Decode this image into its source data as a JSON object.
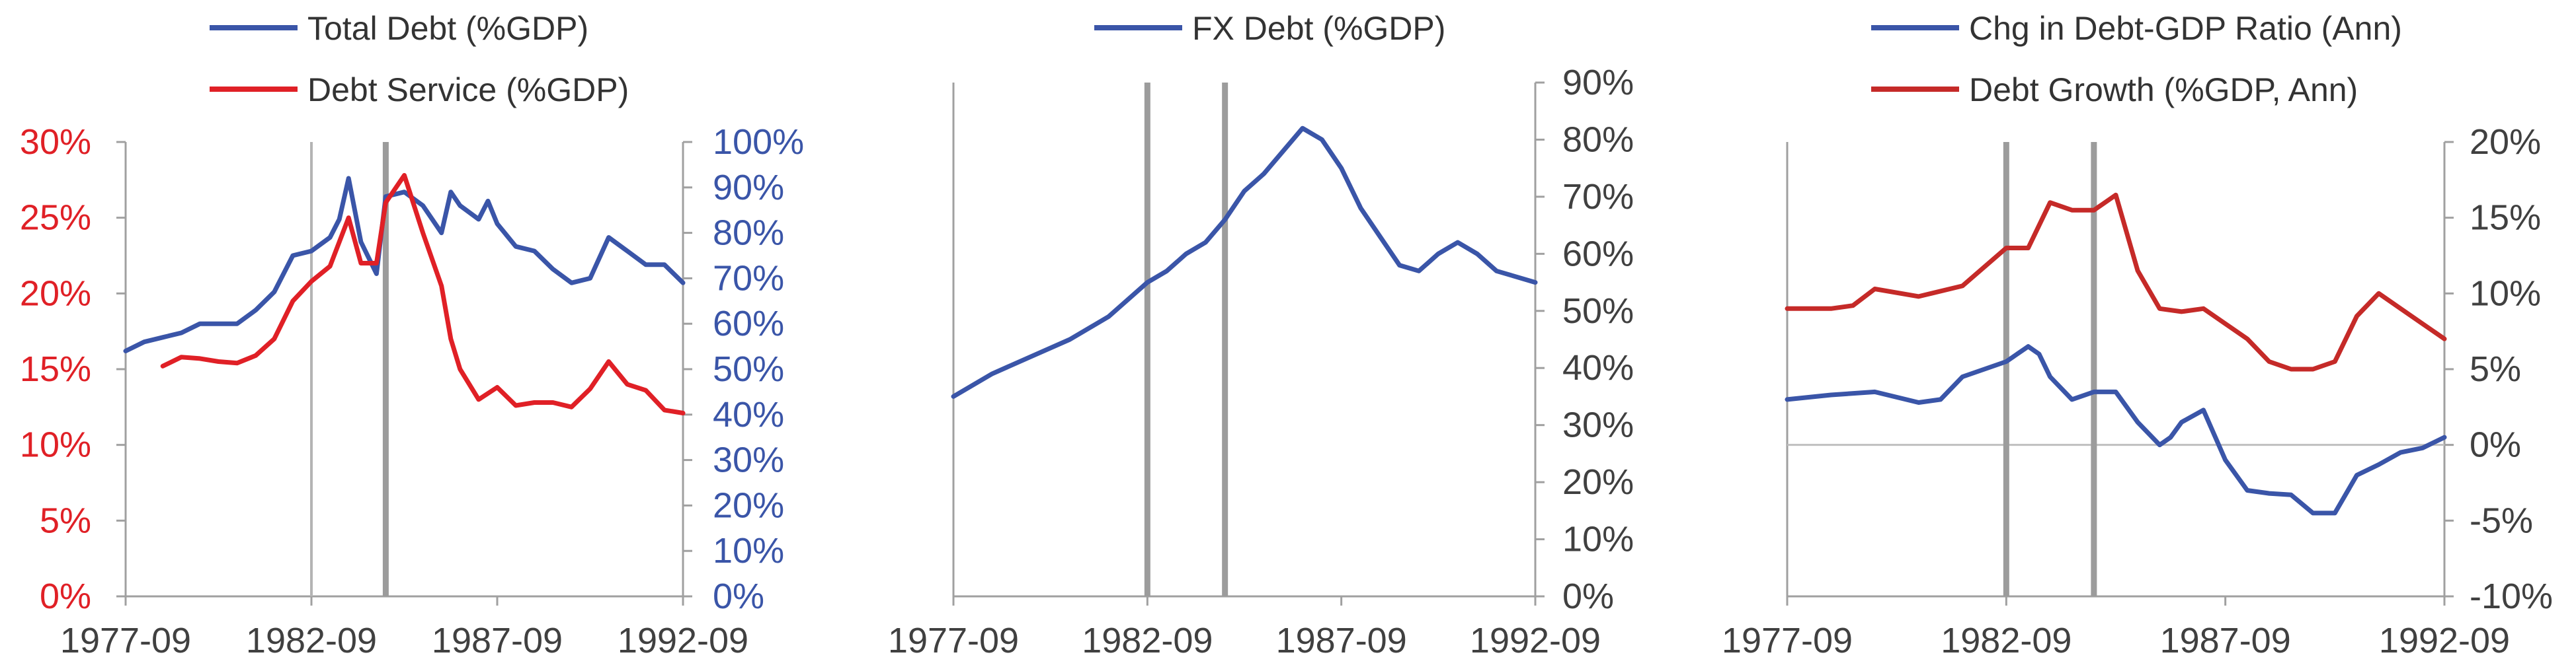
{
  "chart_data": [
    {
      "type": "line",
      "title": "",
      "x_ticks": [
        "1977-09",
        "1982-09",
        "1987-09",
        "1992-09"
      ],
      "xlim": [
        "1977-09",
        "1992-09"
      ],
      "y_left": {
        "ylim": [
          0,
          30
        ],
        "ticks": [
          0,
          5,
          10,
          15,
          20,
          25,
          30
        ],
        "tick_labels": [
          "0%",
          "5%",
          "10%",
          "15%",
          "20%",
          "25%",
          "30%"
        ],
        "color": "#e02026"
      },
      "y_right": {
        "ylim": [
          0,
          100
        ],
        "ticks": [
          0,
          10,
          20,
          30,
          40,
          50,
          60,
          70,
          80,
          90,
          100
        ],
        "tick_labels": [
          "0%",
          "10%",
          "20%",
          "30%",
          "40%",
          "50%",
          "60%",
          "70%",
          "80%",
          "90%",
          "100%"
        ],
        "color": "#3a55a8"
      },
      "vlines": [
        {
          "x": "1982-09",
          "style": "thin"
        },
        {
          "x": "1984-09",
          "style": "thick"
        }
      ],
      "legend_position": "top-left",
      "series": [
        {
          "name": "Total Debt (%GDP)",
          "axis": "right",
          "color": "#3a55a8",
          "points": [
            [
              "1977-09",
              54
            ],
            [
              "1978-03",
              56
            ],
            [
              "1978-09",
              57
            ],
            [
              "1979-03",
              58
            ],
            [
              "1979-09",
              60
            ],
            [
              "1980-03",
              60
            ],
            [
              "1980-09",
              60
            ],
            [
              "1981-03",
              63
            ],
            [
              "1981-09",
              67
            ],
            [
              "1982-03",
              75
            ],
            [
              "1982-09",
              76
            ],
            [
              "1983-03",
              79
            ],
            [
              "1983-06",
              83
            ],
            [
              "1983-09",
              92
            ],
            [
              "1984-01",
              78
            ],
            [
              "1984-06",
              71
            ],
            [
              "1984-09",
              88
            ],
            [
              "1985-03",
              89
            ],
            [
              "1985-09",
              86
            ],
            [
              "1986-03",
              80
            ],
            [
              "1986-06",
              89
            ],
            [
              "1986-09",
              86
            ],
            [
              "1987-03",
              83
            ],
            [
              "1987-06",
              87
            ],
            [
              "1987-09",
              82
            ],
            [
              "1988-03",
              77
            ],
            [
              "1988-09",
              76
            ],
            [
              "1989-03",
              72
            ],
            [
              "1989-09",
              69
            ],
            [
              "1990-03",
              70
            ],
            [
              "1990-09",
              79
            ],
            [
              "1991-03",
              76
            ],
            [
              "1991-09",
              73
            ],
            [
              "1992-03",
              73
            ],
            [
              "1992-09",
              69
            ]
          ]
        },
        {
          "name": "Debt Service (%GDP)",
          "axis": "left",
          "color": "#e02026",
          "points": [
            [
              "1978-09",
              15.2
            ],
            [
              "1979-03",
              15.8
            ],
            [
              "1979-09",
              15.7
            ],
            [
              "1980-03",
              15.5
            ],
            [
              "1980-09",
              15.4
            ],
            [
              "1981-03",
              15.9
            ],
            [
              "1981-09",
              17.0
            ],
            [
              "1982-03",
              19.5
            ],
            [
              "1982-09",
              20.8
            ],
            [
              "1983-03",
              21.8
            ],
            [
              "1983-09",
              25.0
            ],
            [
              "1984-01",
              22.0
            ],
            [
              "1984-06",
              22.0
            ],
            [
              "1984-09",
              26.0
            ],
            [
              "1985-03",
              27.8
            ],
            [
              "1985-09",
              24.0
            ],
            [
              "1986-03",
              20.5
            ],
            [
              "1986-06",
              17.0
            ],
            [
              "1986-09",
              15.0
            ],
            [
              "1987-03",
              13.0
            ],
            [
              "1987-09",
              13.8
            ],
            [
              "1988-03",
              12.6
            ],
            [
              "1988-09",
              12.8
            ],
            [
              "1989-03",
              12.8
            ],
            [
              "1989-09",
              12.5
            ],
            [
              "1990-03",
              13.7
            ],
            [
              "1990-09",
              15.5
            ],
            [
              "1991-03",
              14.0
            ],
            [
              "1991-09",
              13.6
            ],
            [
              "1992-03",
              12.3
            ],
            [
              "1992-09",
              12.1
            ]
          ]
        }
      ]
    },
    {
      "type": "line",
      "title": "",
      "x_ticks": [
        "1977-09",
        "1982-09",
        "1987-09",
        "1992-09"
      ],
      "xlim": [
        "1977-09",
        "1992-09"
      ],
      "y_right": {
        "ylim": [
          0,
          90
        ],
        "ticks": [
          0,
          10,
          20,
          30,
          40,
          50,
          60,
          70,
          80,
          90
        ],
        "tick_labels": [
          "0%",
          "10%",
          "20%",
          "30%",
          "40%",
          "50%",
          "60%",
          "70%",
          "80%",
          "90%"
        ],
        "color": "#404040"
      },
      "vlines": [
        {
          "x": "1982-09",
          "style": "thick"
        },
        {
          "x": "1984-09",
          "style": "thick"
        }
      ],
      "legend_position": "top-center",
      "series": [
        {
          "name": "FX Debt (%GDP)",
          "axis": "right",
          "color": "#3a55a8",
          "points": [
            [
              "1977-09",
              35
            ],
            [
              "1978-09",
              39
            ],
            [
              "1979-09",
              42
            ],
            [
              "1980-09",
              45
            ],
            [
              "1981-09",
              49
            ],
            [
              "1982-09",
              55
            ],
            [
              "1983-03",
              57
            ],
            [
              "1983-09",
              60
            ],
            [
              "1984-03",
              62
            ],
            [
              "1984-09",
              66
            ],
            [
              "1985-03",
              71
            ],
            [
              "1985-09",
              74
            ],
            [
              "1986-03",
              78
            ],
            [
              "1986-09",
              82
            ],
            [
              "1987-03",
              80
            ],
            [
              "1987-09",
              75
            ],
            [
              "1988-03",
              68
            ],
            [
              "1988-09",
              63
            ],
            [
              "1989-03",
              58
            ],
            [
              "1989-09",
              57
            ],
            [
              "1990-03",
              60
            ],
            [
              "1990-09",
              62
            ],
            [
              "1991-03",
              60
            ],
            [
              "1991-09",
              57
            ],
            [
              "1992-09",
              55
            ]
          ]
        }
      ]
    },
    {
      "type": "line",
      "title": "",
      "x_ticks": [
        "1977-09",
        "1982-09",
        "1987-09",
        "1992-09"
      ],
      "xlim": [
        "1977-09",
        "1992-09"
      ],
      "y_right": {
        "ylim": [
          -10,
          20
        ],
        "ticks": [
          -10,
          -5,
          0,
          5,
          10,
          15,
          20
        ],
        "tick_labels": [
          "-10%",
          "-5%",
          "0%",
          "5%",
          "10%",
          "15%",
          "20%"
        ],
        "color": "#404040"
      },
      "vlines": [
        {
          "x": "1982-09",
          "style": "thick"
        },
        {
          "x": "1984-09",
          "style": "thick"
        }
      ],
      "zero_line": true,
      "legend_position": "top-center",
      "series": [
        {
          "name": "Chg in Debt-GDP Ratio (Ann)",
          "axis": "right",
          "color": "#3a55a8",
          "points": [
            [
              "1977-09",
              3.0
            ],
            [
              "1978-09",
              3.3
            ],
            [
              "1979-09",
              3.5
            ],
            [
              "1980-09",
              2.8
            ],
            [
              "1981-03",
              3.0
            ],
            [
              "1981-09",
              4.5
            ],
            [
              "1982-09",
              5.5
            ],
            [
              "1983-03",
              6.5
            ],
            [
              "1983-06",
              6.0
            ],
            [
              "1983-09",
              4.5
            ],
            [
              "1984-03",
              3.0
            ],
            [
              "1984-09",
              3.5
            ],
            [
              "1985-03",
              3.5
            ],
            [
              "1985-09",
              1.5
            ],
            [
              "1986-03",
              0.0
            ],
            [
              "1986-06",
              0.5
            ],
            [
              "1986-09",
              1.5
            ],
            [
              "1987-03",
              2.3
            ],
            [
              "1987-09",
              -1.0
            ],
            [
              "1988-03",
              -3.0
            ],
            [
              "1988-09",
              -3.2
            ],
            [
              "1989-03",
              -3.3
            ],
            [
              "1989-09",
              -4.5
            ],
            [
              "1990-03",
              -4.5
            ],
            [
              "1990-09",
              -2.0
            ],
            [
              "1991-03",
              -1.3
            ],
            [
              "1991-09",
              -0.5
            ],
            [
              "1992-03",
              -0.2
            ],
            [
              "1992-09",
              0.5
            ]
          ]
        },
        {
          "name": "Debt Growth (%GDP, Ann)",
          "axis": "right",
          "color": "#c52a28",
          "points": [
            [
              "1977-09",
              9.0
            ],
            [
              "1978-09",
              9.0
            ],
            [
              "1979-03",
              9.2
            ],
            [
              "1979-09",
              10.3
            ],
            [
              "1980-09",
              9.8
            ],
            [
              "1981-09",
              10.5
            ],
            [
              "1982-09",
              13.0
            ],
            [
              "1983-03",
              13.0
            ],
            [
              "1983-09",
              16.0
            ],
            [
              "1984-03",
              15.5
            ],
            [
              "1984-09",
              15.5
            ],
            [
              "1985-03",
              16.5
            ],
            [
              "1985-09",
              11.5
            ],
            [
              "1986-03",
              9.0
            ],
            [
              "1986-09",
              8.8
            ],
            [
              "1987-03",
              9.0
            ],
            [
              "1987-09",
              8.0
            ],
            [
              "1988-03",
              7.0
            ],
            [
              "1988-09",
              5.5
            ],
            [
              "1989-03",
              5.0
            ],
            [
              "1989-09",
              5.0
            ],
            [
              "1990-03",
              5.5
            ],
            [
              "1990-09",
              8.5
            ],
            [
              "1991-03",
              10.0
            ],
            [
              "1991-09",
              9.0
            ],
            [
              "1992-03",
              8.0
            ],
            [
              "1992-09",
              7.0
            ]
          ]
        }
      ]
    }
  ]
}
